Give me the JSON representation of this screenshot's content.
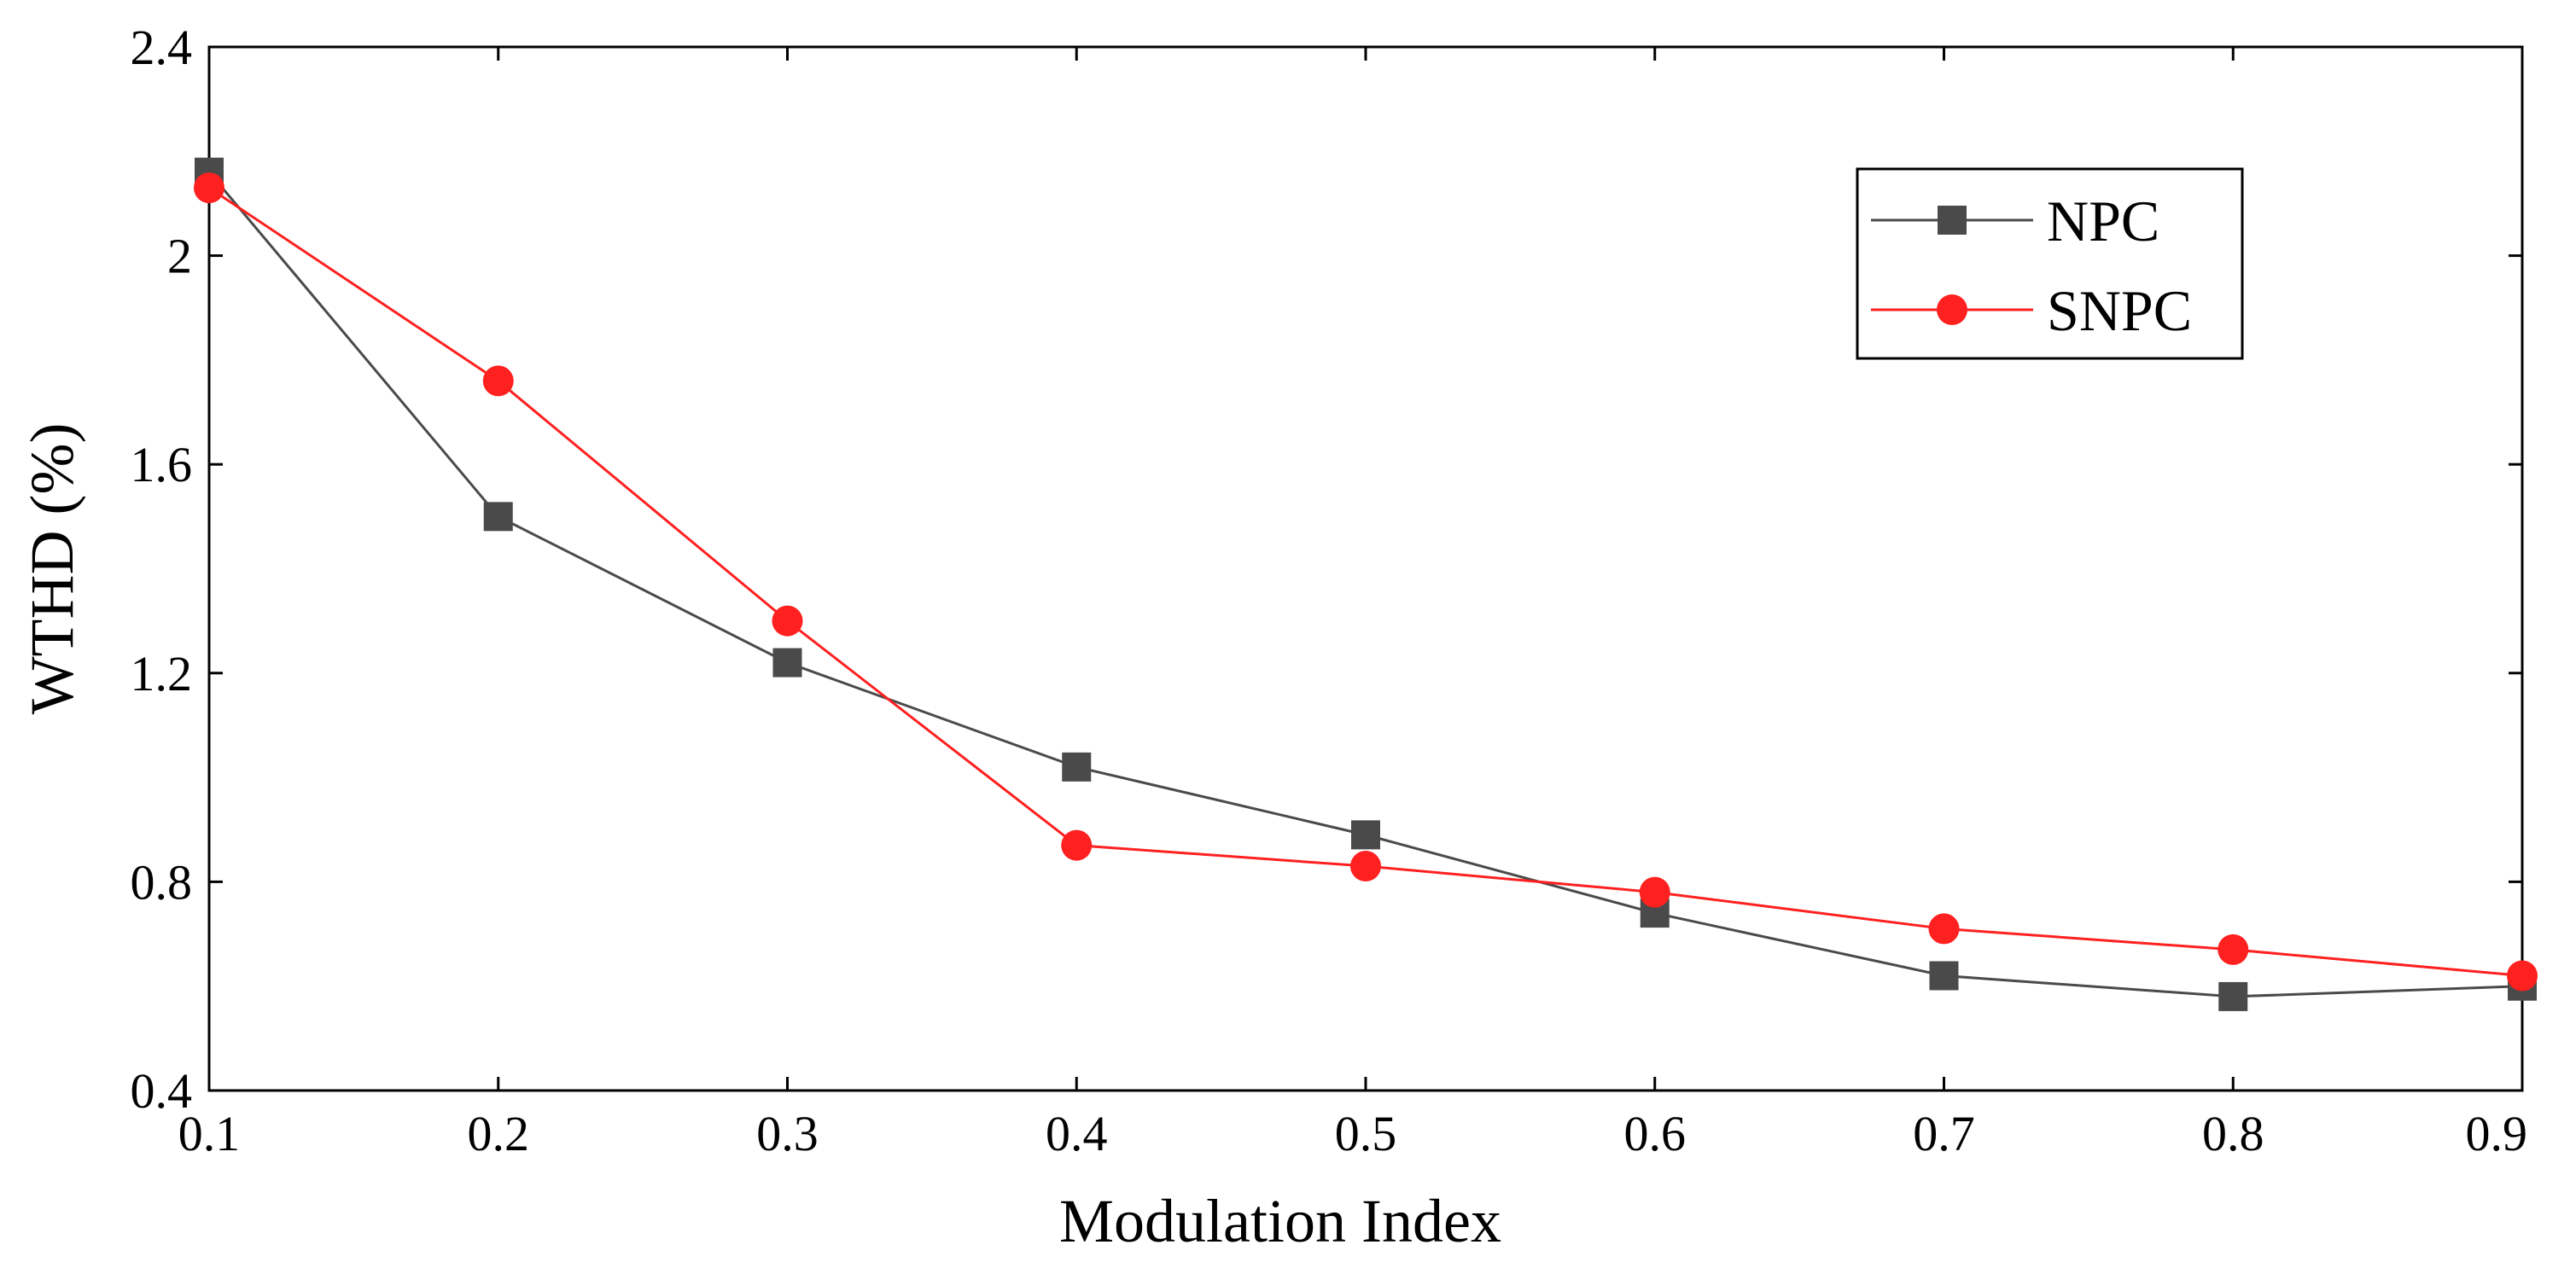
{
  "chart_data": {
    "type": "line",
    "title": "",
    "xlabel": "Modulation Index",
    "ylabel": "WTHD (%)",
    "xlim": [
      0.1,
      0.9
    ],
    "ylim": [
      0.4,
      2.4
    ],
    "xticks": [
      "0.1",
      "0.2",
      "0.3",
      "0.4",
      "0.5",
      "0.6",
      "0.7",
      "0.8",
      "0.9"
    ],
    "yticks": [
      "0.4",
      "0.8",
      "1.2",
      "1.6",
      "2",
      "2.4"
    ],
    "legend_position": "top-right",
    "grid": false,
    "x": [
      0.1,
      0.2,
      0.3,
      0.4,
      0.5,
      0.6,
      0.7,
      0.8,
      0.9
    ],
    "series": [
      {
        "name": "NPC",
        "color": "#4a4a4a",
        "marker": "square",
        "values": [
          2.16,
          1.5,
          1.22,
          1.02,
          0.89,
          0.74,
          0.62,
          0.58,
          0.6
        ]
      },
      {
        "name": "SNPC",
        "color": "#ff2020",
        "marker": "circle",
        "values": [
          2.13,
          1.76,
          1.3,
          0.87,
          0.83,
          0.78,
          0.71,
          0.67,
          0.62
        ]
      }
    ]
  }
}
